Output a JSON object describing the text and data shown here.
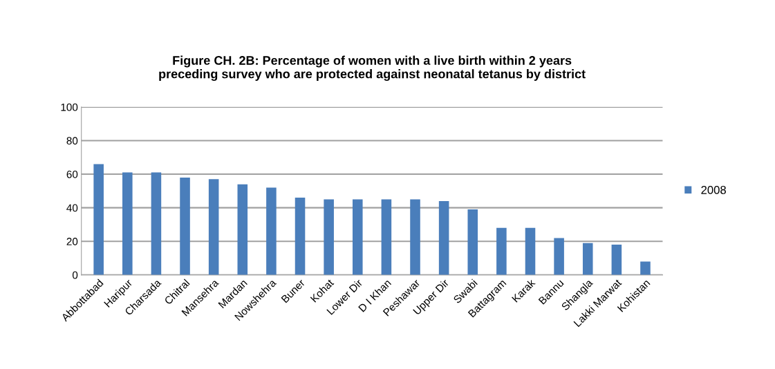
{
  "chart_data": {
    "type": "bar",
    "title": "Figure CH. 2B: Percentage of women with a live birth within 2 years\npreceding survey who are protected against neonatal tetanus by district",
    "categories": [
      "Abbottabad",
      "Haripur",
      "Charsada",
      "Chitral",
      "Mansehra",
      "Mardan",
      "Nowshehra",
      "Buner",
      "Kohat",
      "Lower Dir",
      "D I Khan",
      "Peshawar",
      "Upper Dir",
      "Swabi",
      "Battagram",
      "Karak",
      "Bannu",
      "Shangla",
      "Lakki Marwat",
      "Kohistan"
    ],
    "series": [
      {
        "name": "2008",
        "color": "#4a7ebb",
        "values": [
          66,
          61,
          61,
          58,
          57,
          54,
          52,
          46,
          45,
          45,
          45,
          45,
          44,
          39,
          28,
          28,
          22,
          19,
          18,
          8
        ]
      }
    ],
    "ylim": [
      0,
      100
    ],
    "yticks": [
      0,
      20,
      40,
      60,
      80,
      100
    ],
    "grid": "y",
    "legend": "right"
  }
}
